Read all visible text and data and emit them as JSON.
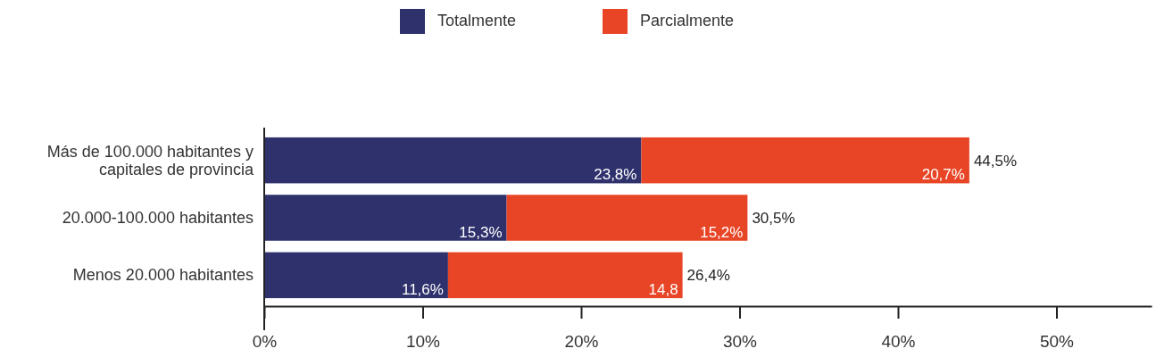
{
  "chart_data": {
    "type": "bar",
    "orientation": "horizontal",
    "stacked": true,
    "categories": [
      "Más de 100.000 habitantes y capitales de provincia",
      "20.000-100.000 habitantes",
      "Menos 20.000 habitantes"
    ],
    "series": [
      {
        "name": "Totalmente",
        "color": "#2e316c",
        "values": [
          23.8,
          15.3,
          11.6
        ],
        "value_labels": [
          "23,8%",
          "15,3%",
          "11,6%"
        ]
      },
      {
        "name": "Parcialmente",
        "color": "#e84526",
        "values": [
          20.7,
          15.2,
          14.8
        ],
        "value_labels": [
          "20,7%",
          "15,2%",
          "14,8"
        ]
      }
    ],
    "totals": [
      "44,5%",
      "30,5%",
      "26,4%"
    ],
    "xlim": [
      0,
      56
    ],
    "xticks": [
      {
        "value": 0,
        "label": "0%"
      },
      {
        "value": 10,
        "label": "10%"
      },
      {
        "value": 20,
        "label": "20%"
      },
      {
        "value": 30,
        "label": "30%"
      },
      {
        "value": 40,
        "label": "40%"
      },
      {
        "value": 50,
        "label": "50%"
      }
    ],
    "grid": false,
    "legend": "top"
  }
}
